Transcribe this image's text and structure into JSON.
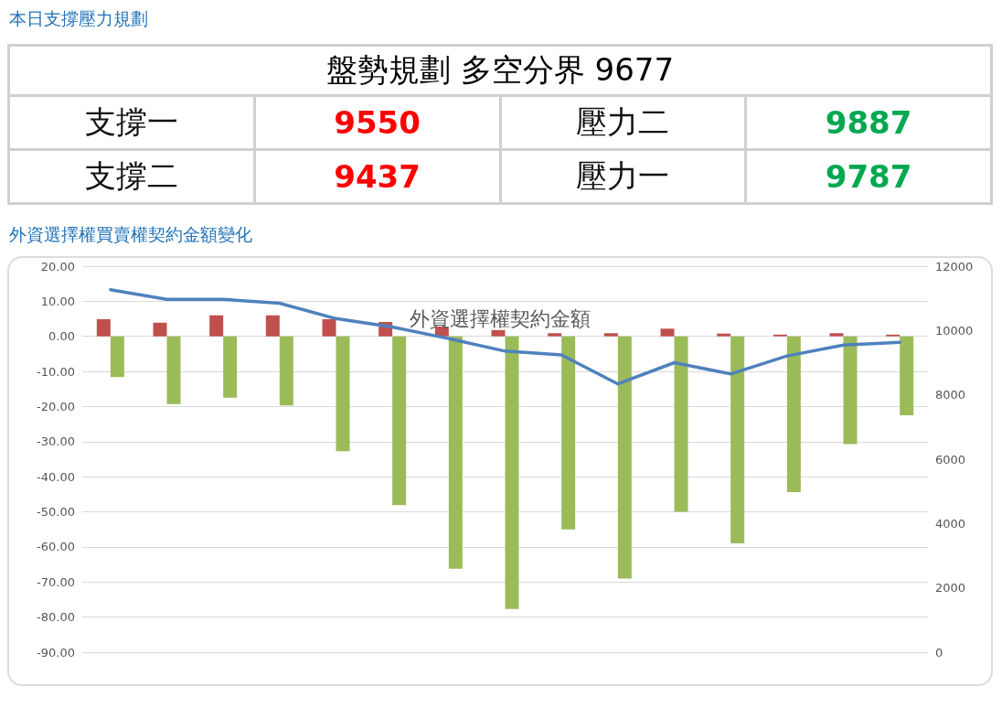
{
  "chart_data": [
    {
      "type": "other",
      "title": "本日支撐壓力規劃",
      "subtitle": "盤勢規劃 多空分界 9677",
      "annotations": [
        "支撐一",
        "9550",
        "壓力二",
        "9887",
        "支撐二",
        "9437",
        "壓力一",
        "9787"
      ]
    },
    {
      "type": "bar",
      "title": "外資選擇權買賣權契約金額變化",
      "subtitle": "外資選擇權契約金額",
      "categories": [
        null,
        null,
        null,
        null,
        null,
        null,
        null,
        null,
        null,
        null,
        null,
        null,
        null,
        null,
        null
      ],
      "series": [
        {
          "color": "#c0504d",
          "values": [
            4.9,
            3.9,
            6.0,
            6.0,
            4.9,
            4.1,
            2.8,
            1.8,
            0.9,
            0.9,
            2.2,
            0.8,
            0.5,
            0.9,
            0.5
          ]
        },
        {
          "color": "#9bbb59",
          "values": [
            -11.6,
            -19.3,
            -17.5,
            -19.7,
            -32.7,
            -48.1,
            -66.2,
            -77.7,
            -55.0,
            -69.0,
            -50.0,
            -59.0,
            -44.4,
            -30.7,
            -22.5
          ]
        },
        {
          "type": "line",
          "axis": "y2",
          "color": "#4f81bd",
          "values": [
            11270,
            10970,
            10970,
            10850,
            10370,
            10110,
            9750,
            9360,
            9240,
            8340,
            9000,
            8650,
            9210,
            9550,
            9630
          ]
        }
      ],
      "ylim": [
        -90,
        20
      ],
      "yticks": [
        {
          "value": -90,
          "label": "-90.00"
        },
        {
          "value": -80,
          "label": "-80.00"
        },
        {
          "value": -70,
          "label": "-70.00"
        },
        {
          "value": -60,
          "label": "-60.00"
        },
        {
          "value": -50,
          "label": "-50.00"
        },
        {
          "value": -40,
          "label": "-40.00"
        },
        {
          "value": -30,
          "label": "-30.00"
        },
        {
          "value": -20,
          "label": "-20.00"
        },
        {
          "value": -10,
          "label": "-10.00"
        },
        {
          "value": 0,
          "label": "0.00"
        },
        {
          "value": 10,
          "label": "10.00"
        },
        {
          "value": 20,
          "label": "20.00"
        }
      ],
      "y2lim": [
        0,
        12000
      ],
      "y2ticks": [
        0,
        2000,
        4000,
        6000,
        8000,
        10000,
        12000
      ],
      "grid": "y",
      "marker": "none",
      "line_style": "solid"
    }
  ]
}
